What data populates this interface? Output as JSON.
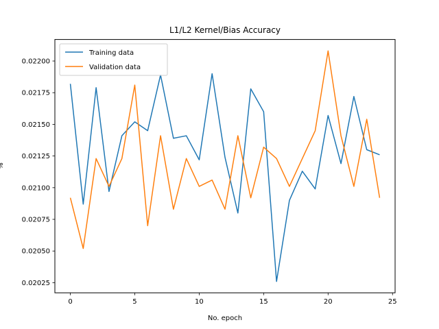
{
  "chart_data": {
    "type": "line",
    "title": "L1/L2 Kernel/Bias Accuracy",
    "xlabel": "No. epoch",
    "ylabel": "%",
    "xlim": [
      -1.2,
      25.2
    ],
    "ylim": [
      0.02017,
      0.02217
    ],
    "xticks": [
      0,
      5,
      10,
      15,
      20,
      25
    ],
    "yticks": [
      0.02025,
      0.0205,
      0.02075,
      0.021,
      0.02125,
      0.0215,
      0.02175,
      0.022
    ],
    "ytick_labels": [
      "0.02025",
      "0.02050",
      "0.02075",
      "0.02100",
      "0.02125",
      "0.02150",
      "0.02175",
      "0.02200"
    ],
    "grid": false,
    "legend_position": "top-left",
    "x": [
      0,
      1,
      2,
      3,
      4,
      5,
      6,
      7,
      8,
      9,
      10,
      11,
      12,
      13,
      14,
      15,
      16,
      17,
      18,
      19,
      20,
      21,
      22,
      23,
      24
    ],
    "series": [
      {
        "name": "Training data",
        "color": "#1f77b4",
        "values": [
          0.02182,
          0.02087,
          0.02179,
          0.02097,
          0.02141,
          0.02152,
          0.02145,
          0.02189,
          0.02139,
          0.02141,
          0.02122,
          0.0219,
          0.02124,
          0.0208,
          0.02178,
          0.0216,
          0.02026,
          0.0209,
          0.02113,
          0.02099,
          0.02157,
          0.02119,
          0.02172,
          0.0213,
          0.02126
        ]
      },
      {
        "name": "Validation data",
        "color": "#ff7f0e",
        "values": [
          0.02092,
          0.02052,
          0.02123,
          0.02101,
          0.02123,
          0.02181,
          0.0207,
          0.02141,
          0.02083,
          0.02123,
          0.02101,
          0.02106,
          0.02083,
          0.02141,
          0.02092,
          0.02132,
          0.02123,
          0.02101,
          0.02123,
          0.02145,
          0.02208,
          0.02141,
          0.02101,
          0.02154,
          0.02092
        ]
      }
    ]
  }
}
